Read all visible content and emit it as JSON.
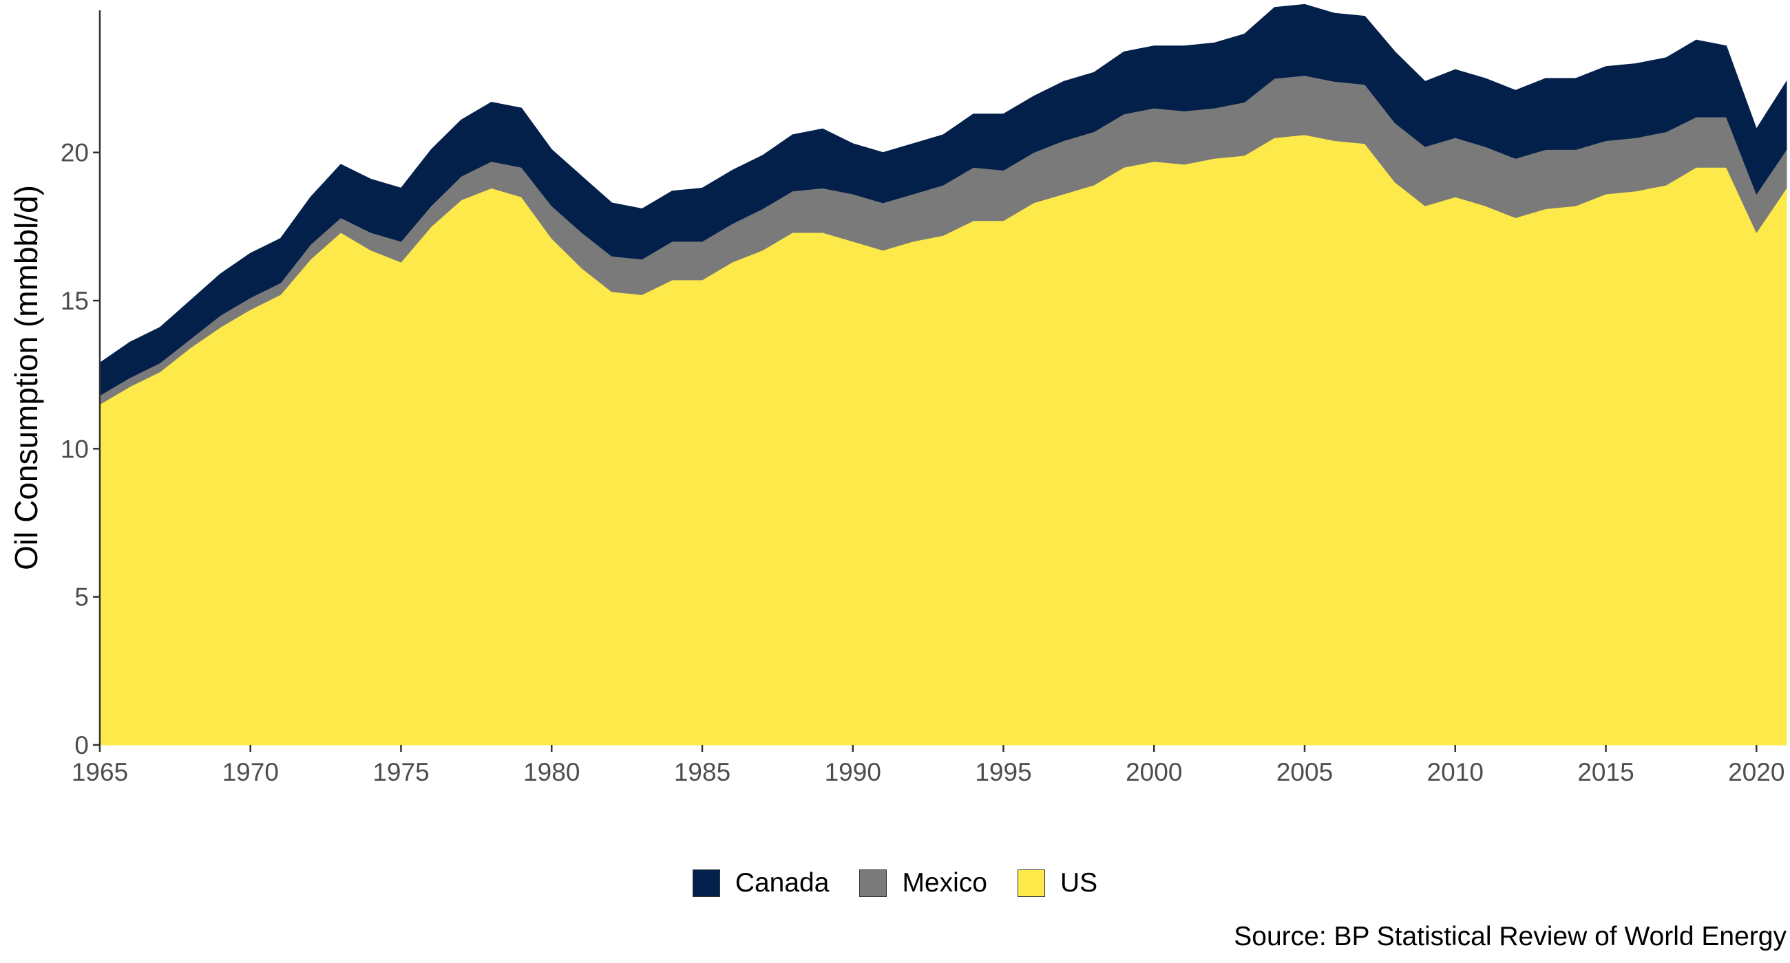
{
  "chart_data": {
    "type": "area",
    "stacked": true,
    "title": "",
    "xlabel": "",
    "ylabel": "Oil Consumption (mmbbl/d)",
    "caption": "Source: BP Statistical Review of World Energy",
    "xlim": [
      1965,
      2021
    ],
    "ylim": [
      0,
      24.8
    ],
    "x_ticks": [
      "1965",
      "1970",
      "1975",
      "1980",
      "1985",
      "1990",
      "1995",
      "2000",
      "2005",
      "2010",
      "2015",
      "2020"
    ],
    "y_ticks": [
      "0",
      "5",
      "10",
      "15",
      "20"
    ],
    "grid": false,
    "legend_position": "bottom",
    "x": [
      1965,
      1966,
      1967,
      1968,
      1969,
      1970,
      1971,
      1972,
      1973,
      1974,
      1975,
      1976,
      1977,
      1978,
      1979,
      1980,
      1981,
      1982,
      1983,
      1984,
      1985,
      1986,
      1987,
      1988,
      1989,
      1990,
      1991,
      1992,
      1993,
      1994,
      1995,
      1996,
      1997,
      1998,
      1999,
      2000,
      2001,
      2002,
      2003,
      2004,
      2005,
      2006,
      2007,
      2008,
      2009,
      2010,
      2011,
      2012,
      2013,
      2014,
      2015,
      2016,
      2017,
      2018,
      2019,
      2020,
      2021
    ],
    "series": [
      {
        "name": "US",
        "color": "#FDE94A",
        "values": [
          11.5,
          12.1,
          12.6,
          13.4,
          14.1,
          14.7,
          15.2,
          16.4,
          17.3,
          16.7,
          16.3,
          17.5,
          18.4,
          18.8,
          18.5,
          17.1,
          16.1,
          15.3,
          15.2,
          15.7,
          15.7,
          16.3,
          16.7,
          17.3,
          17.3,
          17.0,
          16.7,
          17.0,
          17.2,
          17.7,
          17.7,
          18.3,
          18.6,
          18.9,
          19.5,
          19.7,
          19.6,
          19.8,
          19.9,
          20.5,
          20.6,
          20.4,
          20.3,
          19.0,
          18.2,
          18.5,
          18.2,
          17.8,
          18.1,
          18.2,
          18.6,
          18.7,
          18.9,
          19.5,
          19.5,
          17.3,
          18.8
        ]
      },
      {
        "name": "Mexico",
        "color": "#7A7A7A",
        "values": [
          0.3,
          0.3,
          0.3,
          0.3,
          0.4,
          0.4,
          0.4,
          0.5,
          0.5,
          0.6,
          0.7,
          0.7,
          0.8,
          0.9,
          1.0,
          1.1,
          1.2,
          1.2,
          1.2,
          1.3,
          1.3,
          1.3,
          1.4,
          1.4,
          1.5,
          1.6,
          1.6,
          1.6,
          1.7,
          1.8,
          1.7,
          1.7,
          1.8,
          1.8,
          1.8,
          1.8,
          1.8,
          1.7,
          1.8,
          2.0,
          2.0,
          2.0,
          2.0,
          2.0,
          2.0,
          2.0,
          2.0,
          2.0,
          2.0,
          1.9,
          1.8,
          1.8,
          1.8,
          1.7,
          1.7,
          1.3,
          1.3
        ]
      },
      {
        "name": "Canada",
        "color": "#03204B",
        "values": [
          1.1,
          1.2,
          1.2,
          1.3,
          1.4,
          1.5,
          1.5,
          1.6,
          1.8,
          1.8,
          1.8,
          1.9,
          1.9,
          2.0,
          2.0,
          1.9,
          1.9,
          1.8,
          1.7,
          1.7,
          1.8,
          1.8,
          1.8,
          1.9,
          2.0,
          1.7,
          1.7,
          1.7,
          1.7,
          1.8,
          1.9,
          1.9,
          2.0,
          2.0,
          2.1,
          2.1,
          2.2,
          2.2,
          2.3,
          2.4,
          2.4,
          2.3,
          2.3,
          2.4,
          2.2,
          2.3,
          2.3,
          2.3,
          2.4,
          2.4,
          2.5,
          2.5,
          2.5,
          2.6,
          2.4,
          2.2,
          2.3
        ]
      }
    ],
    "legend_order": [
      "Canada",
      "Mexico",
      "US"
    ]
  }
}
